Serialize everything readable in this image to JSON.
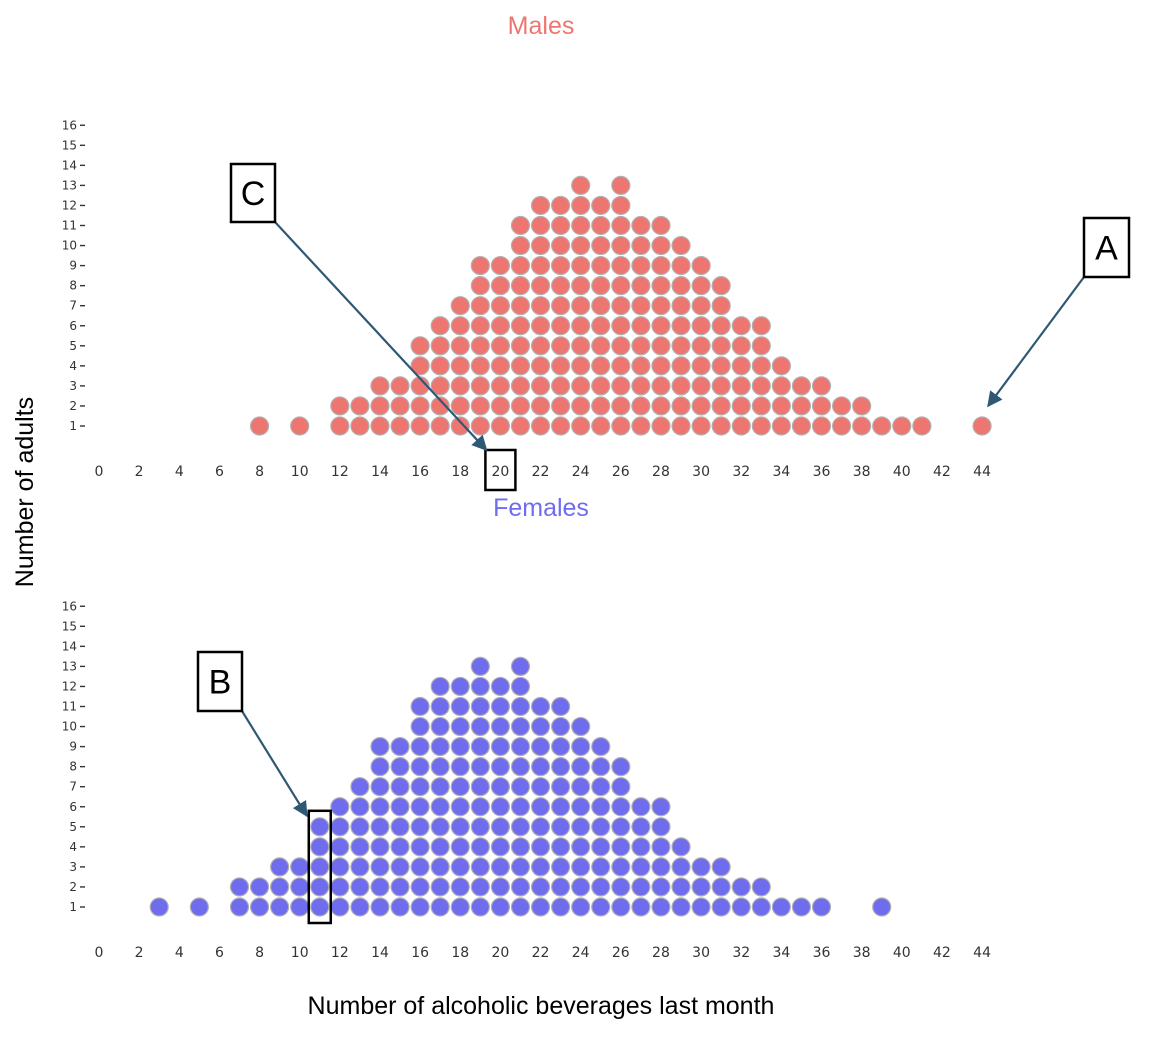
{
  "chart_data": {
    "type": "scatter",
    "subtype": "dot-plot",
    "xlabel": "Number of alcoholic beverages last month",
    "ylabel": "Number of adults",
    "xlim": [
      0,
      44
    ],
    "ylim": [
      0,
      16
    ],
    "x_ticks": [
      0,
      2,
      4,
      6,
      8,
      10,
      12,
      14,
      16,
      18,
      20,
      22,
      24,
      26,
      28,
      30,
      32,
      34,
      36,
      38,
      40,
      42,
      44
    ],
    "y_ticks": [
      1,
      2,
      3,
      4,
      5,
      6,
      7,
      8,
      9,
      10,
      11,
      12,
      13,
      14,
      15,
      16
    ],
    "grid": false,
    "panels": [
      {
        "title": "Males",
        "color": "#ee7671",
        "counts": [
          {
            "x": 8,
            "n": 1
          },
          {
            "x": 10,
            "n": 1
          },
          {
            "x": 12,
            "n": 2
          },
          {
            "x": 13,
            "n": 2
          },
          {
            "x": 14,
            "n": 3
          },
          {
            "x": 15,
            "n": 3
          },
          {
            "x": 16,
            "n": 5
          },
          {
            "x": 17,
            "n": 6
          },
          {
            "x": 18,
            "n": 7
          },
          {
            "x": 19,
            "n": 9
          },
          {
            "x": 20,
            "n": 9
          },
          {
            "x": 21,
            "n": 11
          },
          {
            "x": 22,
            "n": 12
          },
          {
            "x": 23,
            "n": 12
          },
          {
            "x": 24,
            "n": 13
          },
          {
            "x": 25,
            "n": 12
          },
          {
            "x": 26,
            "n": 13
          },
          {
            "x": 27,
            "n": 11
          },
          {
            "x": 28,
            "n": 11
          },
          {
            "x": 29,
            "n": 10
          },
          {
            "x": 30,
            "n": 9
          },
          {
            "x": 31,
            "n": 8
          },
          {
            "x": 32,
            "n": 6
          },
          {
            "x": 33,
            "n": 6
          },
          {
            "x": 34,
            "n": 4
          },
          {
            "x": 35,
            "n": 3
          },
          {
            "x": 36,
            "n": 3
          },
          {
            "x": 37,
            "n": 2
          },
          {
            "x": 38,
            "n": 2
          },
          {
            "x": 39,
            "n": 1
          },
          {
            "x": 40,
            "n": 1
          },
          {
            "x": 41,
            "n": 1
          },
          {
            "x": 44,
            "n": 1
          }
        ]
      },
      {
        "title": "Females",
        "color": "#6f6cee",
        "counts": [
          {
            "x": 3,
            "n": 1
          },
          {
            "x": 5,
            "n": 1
          },
          {
            "x": 7,
            "n": 2
          },
          {
            "x": 8,
            "n": 2
          },
          {
            "x": 9,
            "n": 3
          },
          {
            "x": 10,
            "n": 3
          },
          {
            "x": 11,
            "n": 5
          },
          {
            "x": 12,
            "n": 6
          },
          {
            "x": 13,
            "n": 7
          },
          {
            "x": 14,
            "n": 9
          },
          {
            "x": 15,
            "n": 9
          },
          {
            "x": 16,
            "n": 11
          },
          {
            "x": 17,
            "n": 12
          },
          {
            "x": 18,
            "n": 12
          },
          {
            "x": 19,
            "n": 13
          },
          {
            "x": 20,
            "n": 12
          },
          {
            "x": 21,
            "n": 13
          },
          {
            "x": 22,
            "n": 11
          },
          {
            "x": 23,
            "n": 11
          },
          {
            "x": 24,
            "n": 10
          },
          {
            "x": 25,
            "n": 9
          },
          {
            "x": 26,
            "n": 8
          },
          {
            "x": 27,
            "n": 6
          },
          {
            "x": 28,
            "n": 6
          },
          {
            "x": 29,
            "n": 4
          },
          {
            "x": 30,
            "n": 3
          },
          {
            "x": 31,
            "n": 3
          },
          {
            "x": 32,
            "n": 2
          },
          {
            "x": 33,
            "n": 2
          },
          {
            "x": 34,
            "n": 1
          },
          {
            "x": 35,
            "n": 1
          },
          {
            "x": 36,
            "n": 1
          },
          {
            "x": 39,
            "n": 1
          }
        ]
      }
    ],
    "annotations": [
      {
        "label": "A",
        "panel": 0,
        "target_x": 44,
        "target_y": 1
      },
      {
        "label": "B",
        "panel": 1,
        "target_x": 11,
        "target_y": 5,
        "highlight": {
          "x": 11,
          "y_from": 1,
          "y_to": 5
        }
      },
      {
        "label": "C",
        "panel": 0,
        "target_x": 20,
        "target_y": 0,
        "highlight_tick": 20
      }
    ]
  }
}
